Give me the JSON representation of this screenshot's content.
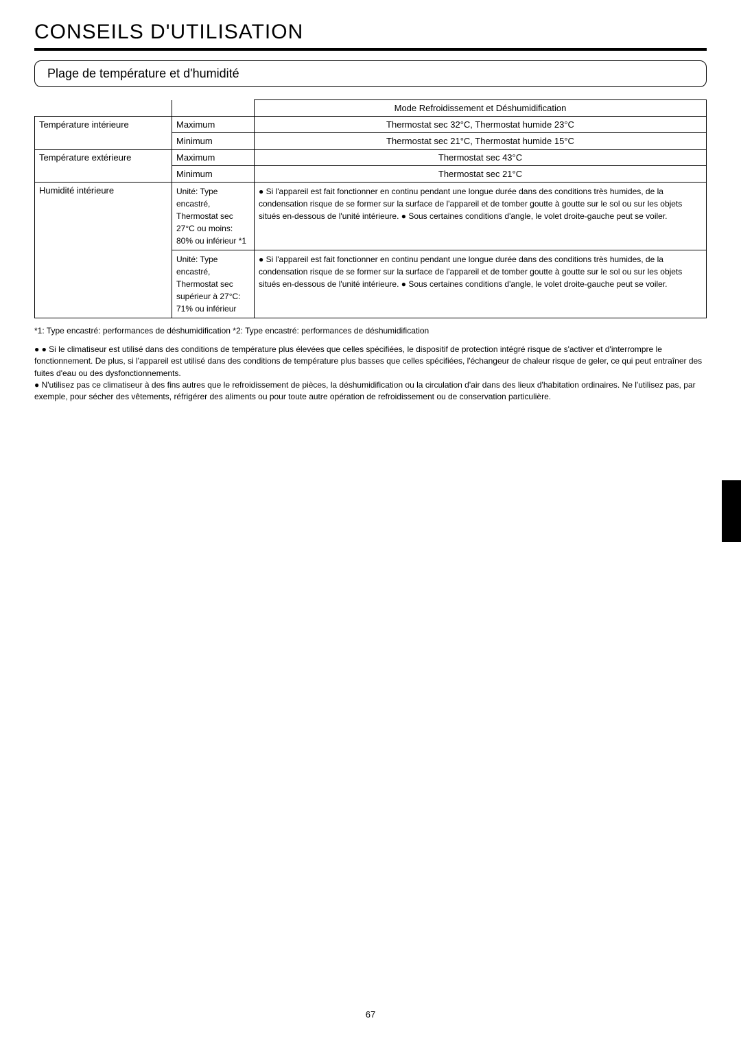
{
  "title": "CONSEILS D'UTILISATION",
  "subtitle": "Plage de température et d'humidité",
  "table": {
    "mode_header": "Mode Refroidissement et Déshumidification",
    "rows": [
      {
        "label": "Température intérieure",
        "cond": "Maximum",
        "val": "Thermostat sec 32°C, Thermostat humide 23°C"
      },
      {
        "label": "",
        "cond": "Minimum",
        "val": "Thermostat sec 21°C, Thermostat humide 15°C"
      },
      {
        "label": "Température extérieure",
        "cond": "Maximum",
        "val": "Thermostat sec 43°C"
      },
      {
        "label": "",
        "cond": "Minimum",
        "val": "Thermostat sec 21°C"
      },
      {
        "label": "Humidité intérieure",
        "cond": "Unité: Type encastré, Thermostat sec 27°C ou moins: 80% ou inférieur *1",
        "val": "● Si l'appareil est fait fonctionner en continu pendant une longue durée dans des conditions très humides, de la condensation risque de se former sur la surface de l'appareil et de tomber goutte à goutte sur le sol ou sur les objets situés en-dessous de l'unité intérieure.\n● Sous certaines conditions d'angle, le volet droite-gauche peut se voiler."
      },
      {
        "label": "",
        "cond": "Unité: Type encastré, Thermostat sec supérieur à 27°C: 71% ou inférieur",
        "val": "● Si l'appareil est fait fonctionner en continu pendant une longue durée dans des conditions très humides, de la condensation risque de se former sur la surface de l'appareil et de tomber goutte à goutte sur le sol ou sur les objets situés en-dessous de l'unité intérieure.\n● Sous certaines conditions d'angle, le volet droite-gauche peut se voiler."
      }
    ]
  },
  "footnotes": "*1: Type encastré: performances de déshumidification\n*2: Type encastré: performances de déshumidification",
  "bullets": [
    "● ● Si le climatiseur est utilisé dans des conditions de température plus élevées que celles spécifiées, le dispositif de protection intégré risque de s'activer et d'interrompre le fonctionnement. De plus, si l'appareil est utilisé dans des conditions de température plus basses que celles spécifiées, l'échangeur de chaleur risque de geler, ce qui peut entraîner des fuites d'eau ou des dysfonctionnements.",
    "● N'utilisez pas ce climatiseur à des fins autres que le refroidissement de pièces, la déshumidification ou la circulation d'air dans des lieux d'habitation ordinaires. Ne l'utilisez pas, par exemple, pour sécher des vêtements, réfrigérer des aliments ou pour toute autre opération de refroidissement ou de conservation particulière."
  ],
  "page_number": "67",
  "colors": {
    "text": "#000000",
    "bg": "#ffffff"
  }
}
